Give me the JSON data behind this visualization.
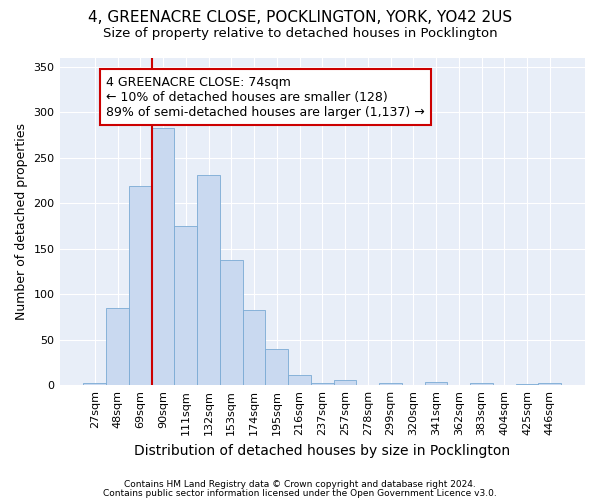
{
  "title1": "4, GREENACRE CLOSE, POCKLINGTON, YORK, YO42 2US",
  "title2": "Size of property relative to detached houses in Pocklington",
  "xlabel": "Distribution of detached houses by size in Pocklington",
  "ylabel": "Number of detached properties",
  "categories": [
    "27sqm",
    "48sqm",
    "69sqm",
    "90sqm",
    "111sqm",
    "132sqm",
    "153sqm",
    "174sqm",
    "195sqm",
    "216sqm",
    "237sqm",
    "257sqm",
    "278sqm",
    "299sqm",
    "320sqm",
    "341sqm",
    "362sqm",
    "383sqm",
    "404sqm",
    "425sqm",
    "446sqm"
  ],
  "values": [
    2,
    85,
    219,
    282,
    175,
    231,
    138,
    83,
    40,
    11,
    2,
    6,
    0,
    2,
    0,
    3,
    0,
    2,
    0,
    1,
    2
  ],
  "bar_color": "#c9d9f0",
  "bar_edge_color": "#7aaad4",
  "vline_color": "#cc0000",
  "annotation_line1": "4 GREENACRE CLOSE: 74sqm",
  "annotation_line2": "← 10% of detached houses are smaller (128)",
  "annotation_line3": "89% of semi-detached houses are larger (1,137) →",
  "annotation_box_color": "white",
  "annotation_box_edge": "#cc0000",
  "ylim": [
    0,
    360
  ],
  "yticks": [
    0,
    50,
    100,
    150,
    200,
    250,
    300,
    350
  ],
  "footer1": "Contains HM Land Registry data © Crown copyright and database right 2024.",
  "footer2": "Contains public sector information licensed under the Open Government Licence v3.0.",
  "bg_color": "#ffffff",
  "plot_bg_color": "#e8eef8",
  "grid_color": "#ffffff",
  "title1_fontsize": 11,
  "title2_fontsize": 9.5,
  "ylabel_fontsize": 9,
  "xlabel_fontsize": 10,
  "annotation_fontsize": 9,
  "tick_fontsize": 8,
  "footer_fontsize": 6.5
}
